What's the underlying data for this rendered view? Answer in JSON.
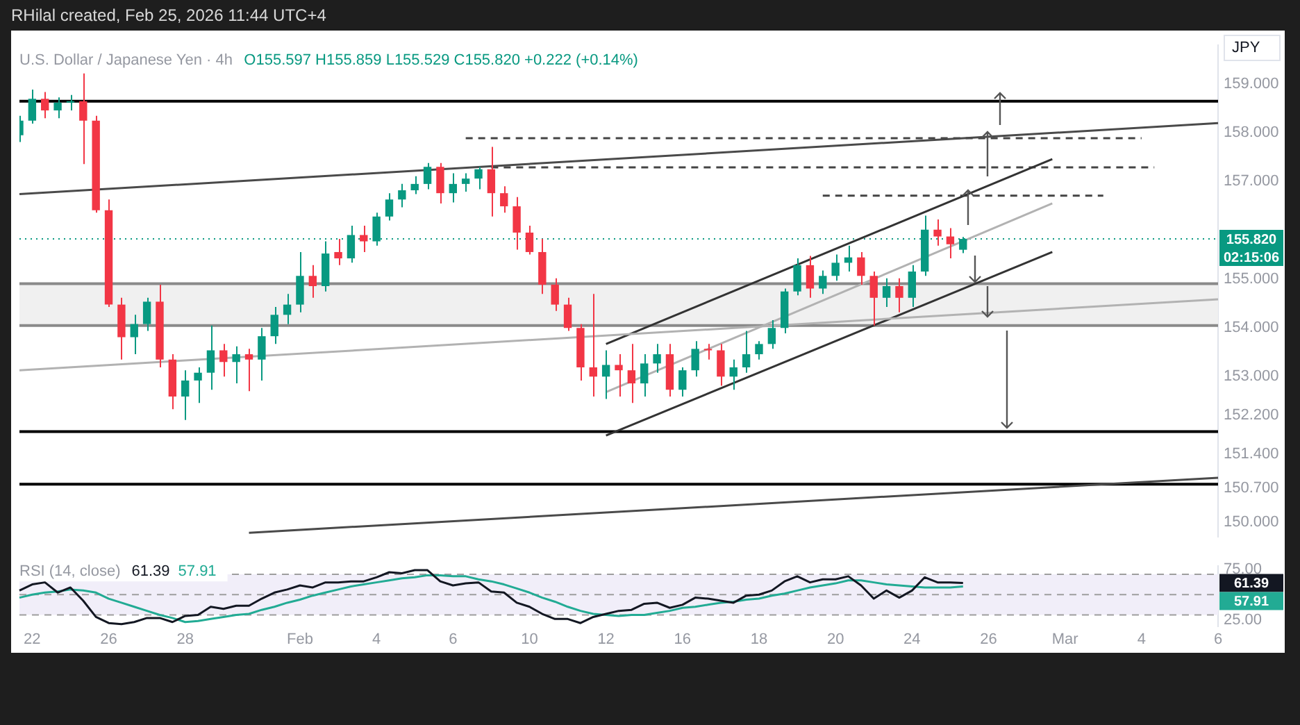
{
  "chart_data": [
    {
      "type": "candlestick",
      "title": "U.S. Dollar / Japanese Yen · 4h",
      "subtitle": "O155.597 H155.859 L155.529 C155.820 +0.222 (+0.14%)",
      "ylabel": "JPY",
      "categories": [
        null,
        null,
        null,
        null,
        null,
        null,
        null,
        null,
        null,
        null,
        null,
        null,
        null,
        null,
        null,
        null,
        null,
        null,
        null,
        null,
        null,
        null,
        null,
        null,
        null,
        null,
        null,
        null,
        null,
        null,
        null,
        null,
        null,
        null,
        null,
        null,
        null,
        null,
        null,
        null,
        null,
        null,
        null,
        null,
        null,
        null,
        null,
        null,
        null,
        null,
        null,
        null,
        null,
        null,
        null,
        null,
        null,
        null,
        null,
        null,
        null,
        null,
        null,
        null,
        null,
        null,
        null,
        null,
        null,
        null,
        null,
        null,
        null,
        null,
        null,
        null,
        null,
        null,
        null,
        null,
        null,
        null,
        null,
        null,
        null,
        null,
        null,
        null,
        null,
        null,
        null,
        null,
        null,
        null,
        null
      ],
      "ohlc": [
        [
          157.95,
          158.35,
          157.81,
          158.25
        ],
        [
          158.25,
          158.89,
          158.19,
          158.7
        ],
        [
          158.7,
          158.84,
          158.3,
          158.46
        ],
        [
          158.46,
          158.73,
          158.3,
          158.62
        ],
        [
          158.62,
          158.78,
          158.46,
          158.65
        ],
        [
          158.65,
          159.22,
          157.36,
          158.25
        ],
        [
          158.25,
          158.35,
          156.36,
          156.41
        ],
        [
          156.41,
          156.63,
          154.42,
          154.47
        ],
        [
          154.47,
          154.61,
          153.34,
          153.8
        ],
        [
          153.8,
          154.26,
          153.45,
          154.07
        ],
        [
          154.07,
          154.61,
          153.93,
          154.53
        ],
        [
          154.53,
          154.88,
          153.18,
          153.34
        ],
        [
          153.34,
          153.45,
          152.32,
          152.58
        ],
        [
          152.58,
          153.12,
          152.1,
          152.91
        ],
        [
          152.91,
          153.18,
          152.45,
          153.07
        ],
        [
          153.07,
          154.04,
          152.72,
          153.53
        ],
        [
          153.53,
          153.66,
          152.99,
          153.29
        ],
        [
          153.29,
          153.61,
          152.85,
          153.45
        ],
        [
          153.45,
          153.56,
          152.69,
          153.34
        ],
        [
          153.34,
          153.99,
          152.91,
          153.82
        ],
        [
          153.82,
          154.42,
          153.66,
          154.26
        ],
        [
          154.26,
          154.69,
          154.07,
          154.47
        ],
        [
          154.47,
          155.55,
          154.31,
          155.06
        ],
        [
          155.06,
          155.28,
          154.61,
          154.85
        ],
        [
          154.85,
          155.77,
          154.74,
          155.52
        ],
        [
          155.55,
          155.82,
          155.28,
          155.42
        ],
        [
          155.42,
          156.09,
          155.33,
          155.9
        ],
        [
          155.9,
          156.09,
          155.55,
          155.77
        ],
        [
          155.77,
          156.36,
          155.68,
          156.28
        ],
        [
          156.28,
          156.76,
          156.2,
          156.63
        ],
        [
          156.63,
          156.95,
          156.47,
          156.82
        ],
        [
          156.82,
          157.11,
          156.74,
          156.95
        ],
        [
          156.95,
          157.38,
          156.84,
          157.3
        ],
        [
          157.3,
          157.38,
          156.55,
          156.76
        ],
        [
          156.76,
          157.17,
          156.57,
          156.95
        ],
        [
          156.95,
          157.17,
          156.79,
          157.06
        ],
        [
          157.06,
          157.3,
          156.84,
          157.25
        ],
        [
          157.25,
          157.71,
          156.28,
          156.76
        ],
        [
          156.76,
          156.9,
          156.36,
          156.49
        ],
        [
          156.49,
          156.68,
          155.6,
          155.95
        ],
        [
          155.95,
          156.09,
          155.5,
          155.55
        ],
        [
          155.55,
          155.82,
          154.69,
          154.88
        ],
        [
          154.88,
          155.01,
          154.34,
          154.47
        ],
        [
          154.47,
          154.61,
          153.93,
          153.99
        ],
        [
          153.99,
          154.07,
          152.91,
          153.18
        ],
        [
          153.18,
          154.69,
          152.58,
          152.99
        ],
        [
          152.99,
          153.53,
          152.53,
          153.23
        ],
        [
          153.23,
          153.45,
          152.58,
          153.12
        ],
        [
          153.12,
          153.66,
          152.45,
          152.85
        ],
        [
          152.85,
          153.45,
          152.58,
          153.26
        ],
        [
          153.26,
          153.66,
          153.07,
          153.45
        ],
        [
          153.45,
          153.66,
          152.58,
          152.72
        ],
        [
          152.72,
          153.18,
          152.58,
          153.12
        ],
        [
          153.12,
          153.72,
          152.99,
          153.56
        ],
        [
          153.56,
          153.66,
          153.34,
          153.53
        ],
        [
          153.53,
          153.66,
          152.8,
          152.99
        ],
        [
          152.99,
          153.34,
          152.72,
          153.18
        ],
        [
          153.18,
          153.93,
          153.07,
          153.45
        ],
        [
          153.45,
          153.72,
          153.34,
          153.66
        ],
        [
          153.66,
          154.15,
          153.56,
          153.99
        ],
        [
          153.99,
          154.8,
          153.88,
          154.74
        ],
        [
          154.74,
          155.42,
          154.66,
          155.28
        ],
        [
          155.28,
          155.47,
          154.61,
          154.8
        ],
        [
          154.8,
          155.17,
          154.69,
          155.06
        ],
        [
          155.06,
          155.5,
          154.96,
          155.33
        ],
        [
          155.33,
          155.68,
          155.15,
          155.44
        ],
        [
          155.44,
          155.55,
          154.88,
          155.06
        ],
        [
          155.06,
          155.15,
          154.04,
          154.61
        ],
        [
          154.61,
          155.01,
          154.42,
          154.85
        ],
        [
          154.85,
          155.01,
          154.31,
          154.61
        ],
        [
          154.61,
          155.28,
          154.42,
          155.15
        ],
        [
          155.15,
          156.3,
          155.06,
          156.01
        ],
        [
          156.01,
          156.22,
          155.68,
          155.87
        ],
        [
          155.87,
          156.04,
          155.42,
          155.71
        ],
        [
          155.597,
          155.859,
          155.529,
          155.82
        ],
        null,
        null,
        null,
        null,
        null,
        null,
        null,
        null,
        null,
        null,
        null,
        null,
        null,
        null,
        null,
        null,
        null,
        null,
        null,
        null
      ],
      "colors": [
        "#089981",
        "#089981",
        "#f23645",
        "#089981",
        "#089981",
        "#f23645",
        "#f23645",
        "#f23645",
        "#f23645",
        "#089981",
        "#089981",
        "#f23645",
        "#f23645",
        "#089981",
        "#089981",
        "#089981",
        "#f23645",
        "#089981",
        "#f23645",
        "#089981",
        "#089981",
        "#089981",
        "#089981",
        "#f23645",
        "#089981",
        "#f23645",
        "#089981",
        "#f23645",
        "#089981",
        "#089981",
        "#089981",
        "#089981",
        "#089981",
        "#f23645",
        "#089981",
        "#089981",
        "#089981",
        "#f23645",
        "#f23645",
        "#f23645",
        "#f23645",
        "#f23645",
        "#f23645",
        "#f23645",
        "#f23645",
        "#f23645",
        "#089981",
        "#f23645",
        "#f23645",
        "#089981",
        "#089981",
        "#f23645",
        "#089981",
        "#089981",
        "#f23645",
        "#f23645",
        "#089981",
        "#089981",
        "#089981",
        "#089981",
        "#089981",
        "#089981",
        "#f23645",
        "#089981",
        "#089981",
        "#089981",
        "#f23645",
        "#f23645",
        "#089981",
        "#f23645",
        "#089981",
        "#089981",
        "#f23645",
        "#f23645",
        "#089981",
        null,
        null,
        null,
        null,
        null,
        null,
        null,
        null,
        null,
        null,
        null,
        null,
        null,
        null,
        null,
        null,
        null,
        null,
        null,
        null
      ],
      "series": [
        {
          "type": "line",
          "color": "#4a4a4a",
          "values": [
            156.74,
            null,
            null,
            null,
            null,
            null,
            null,
            null,
            null,
            null,
            null,
            null,
            null,
            null,
            null,
            null,
            null,
            null,
            null,
            null,
            null,
            null,
            null,
            null,
            null,
            null,
            null,
            null,
            null,
            null,
            null,
            null,
            null,
            null,
            null,
            null,
            null,
            null,
            null,
            null,
            null,
            null,
            null,
            null,
            null,
            null,
            null,
            null,
            null,
            null,
            null,
            null,
            null,
            null,
            null,
            null,
            null,
            null,
            null,
            null,
            null,
            null,
            null,
            null,
            null,
            null,
            null,
            null,
            null,
            null,
            null,
            null,
            null,
            null,
            null,
            null,
            null,
            null,
            null,
            null,
            null,
            null,
            null,
            null,
            null,
            null,
            null,
            null,
            null,
            null,
            null,
            null,
            null,
            null,
            158.2
          ]
        },
        {
          "type": "line",
          "color": "#b2b2b2",
          "values": [
            153.12,
            null,
            null,
            null,
            null,
            null,
            null,
            null,
            null,
            null,
            null,
            null,
            null,
            null,
            null,
            null,
            null,
            null,
            null,
            null,
            null,
            null,
            null,
            null,
            null,
            null,
            null,
            null,
            null,
            null,
            null,
            null,
            null,
            null,
            null,
            null,
            null,
            null,
            null,
            null,
            null,
            null,
            null,
            null,
            null,
            null,
            null,
            null,
            null,
            null,
            null,
            null,
            null,
            null,
            null,
            null,
            null,
            null,
            null,
            null,
            null,
            null,
            null,
            null,
            null,
            null,
            null,
            null,
            null,
            null,
            null,
            null,
            null,
            null,
            null,
            null,
            null,
            null,
            null,
            null,
            null,
            null,
            null,
            null,
            null,
            null,
            null,
            null,
            null,
            null,
            null,
            null,
            null,
            null,
            154.58
          ]
        },
        {
          "type": "line",
          "color": "#4a4a4a",
          "values": [
            null,
            null,
            null,
            null,
            null,
            null,
            null,
            null,
            null,
            null,
            null,
            null,
            null,
            null,
            null,
            null,
            null,
            null,
            149.78,
            null,
            null,
            null,
            null,
            null,
            null,
            null,
            null,
            null,
            null,
            null,
            null,
            null,
            null,
            null,
            null,
            null,
            null,
            null,
            null,
            null,
            null,
            null,
            null,
            null,
            null,
            null,
            null,
            null,
            null,
            null,
            null,
            null,
            null,
            null,
            null,
            null,
            null,
            null,
            null,
            null,
            null,
            null,
            null,
            null,
            null,
            null,
            null,
            null,
            null,
            null,
            null,
            null,
            null,
            null,
            null,
            null,
            null,
            null,
            null,
            null,
            null,
            null,
            null,
            null,
            null,
            null,
            null,
            null,
            null,
            null,
            null,
            null,
            null,
            null,
            150.91
          ]
        },
        {
          "type": "line",
          "color": "#333333",
          "values": [
            null,
            null,
            null,
            null,
            null,
            null,
            null,
            null,
            null,
            null,
            null,
            null,
            null,
            null,
            null,
            null,
            null,
            null,
            null,
            null,
            null,
            null,
            null,
            null,
            null,
            null,
            null,
            null,
            null,
            null,
            null,
            null,
            null,
            null,
            null,
            null,
            null,
            null,
            null,
            null,
            null,
            null,
            null,
            null,
            null,
            null,
            153.66,
            null,
            null,
            null,
            null,
            null,
            null,
            null,
            null,
            null,
            null,
            null,
            null,
            null,
            null,
            null,
            null,
            null,
            null,
            null,
            null,
            null,
            null,
            null,
            null,
            null,
            null,
            null,
            null,
            null,
            null,
            null,
            null,
            null,
            null,
            157.46,
            null,
            null,
            null,
            null,
            null,
            null,
            null,
            null,
            null,
            null,
            null,
            null,
            null
          ]
        },
        {
          "type": "line",
          "color": "#333333",
          "values": [
            null,
            null,
            null,
            null,
            null,
            null,
            null,
            null,
            null,
            null,
            null,
            null,
            null,
            null,
            null,
            null,
            null,
            null,
            null,
            null,
            null,
            null,
            null,
            null,
            null,
            null,
            null,
            null,
            null,
            null,
            null,
            null,
            null,
            null,
            null,
            null,
            null,
            null,
            null,
            null,
            null,
            null,
            null,
            null,
            null,
            null,
            151.78,
            null,
            null,
            null,
            null,
            null,
            null,
            null,
            null,
            null,
            null,
            null,
            null,
            null,
            null,
            null,
            null,
            null,
            null,
            null,
            null,
            null,
            null,
            null,
            null,
            null,
            null,
            null,
            null,
            null,
            null,
            null,
            null,
            null,
            null,
            155.55,
            null,
            null,
            null,
            null,
            null,
            null,
            null,
            null,
            null,
            null,
            null,
            null,
            null
          ]
        },
        {
          "type": "line",
          "color": "#b2b2b2",
          "values": [
            null,
            null,
            null,
            null,
            null,
            null,
            null,
            null,
            null,
            null,
            null,
            null,
            null,
            null,
            null,
            null,
            null,
            null,
            null,
            null,
            null,
            null,
            null,
            null,
            null,
            null,
            null,
            null,
            null,
            null,
            null,
            null,
            null,
            null,
            null,
            null,
            null,
            null,
            null,
            null,
            null,
            null,
            null,
            null,
            null,
            null,
            152.67,
            null,
            null,
            null,
            null,
            null,
            null,
            null,
            null,
            null,
            null,
            null,
            null,
            null,
            null,
            null,
            null,
            null,
            null,
            null,
            null,
            null,
            null,
            null,
            null,
            null,
            null,
            null,
            null,
            null,
            null,
            null,
            null,
            null,
            null,
            156.55,
            null,
            null,
            null,
            null,
            null,
            null,
            null,
            null,
            null,
            null,
            null,
            null,
            null
          ]
        },
        {
          "type": "line",
          "color": "#444444",
          "line_style": "dashed",
          "values": [
            null,
            null,
            null,
            null,
            null,
            null,
            null,
            null,
            null,
            null,
            null,
            null,
            null,
            null,
            null,
            null,
            null,
            null,
            null,
            null,
            null,
            null,
            null,
            null,
            null,
            null,
            null,
            null,
            null,
            null,
            null,
            null,
            null,
            null,
            null,
            157.89,
            null,
            null,
            null,
            null,
            null,
            null,
            null,
            null,
            null,
            null,
            null,
            null,
            null,
            null,
            null,
            null,
            null,
            null,
            null,
            null,
            null,
            null,
            null,
            null,
            null,
            null,
            null,
            null,
            null,
            null,
            null,
            null,
            null,
            null,
            null,
            null,
            null,
            null,
            null,
            null,
            null,
            null,
            null,
            null,
            null,
            null,
            null,
            null,
            null,
            null,
            null,
            null,
            157.89,
            null,
            null,
            null,
            null,
            null,
            null
          ]
        },
        {
          "type": "line",
          "color": "#444444",
          "line_style": "dashed",
          "values": [
            null,
            null,
            null,
            null,
            null,
            null,
            null,
            null,
            null,
            null,
            null,
            null,
            null,
            null,
            null,
            null,
            null,
            null,
            null,
            null,
            null,
            null,
            null,
            null,
            null,
            null,
            null,
            null,
            null,
            null,
            null,
            null,
            null,
            null,
            null,
            null,
            null,
            157.29,
            null,
            null,
            null,
            null,
            null,
            null,
            null,
            null,
            null,
            null,
            null,
            null,
            null,
            null,
            null,
            null,
            null,
            null,
            null,
            null,
            null,
            null,
            null,
            null,
            null,
            null,
            null,
            null,
            null,
            null,
            null,
            null,
            null,
            null,
            null,
            null,
            null,
            null,
            null,
            null,
            null,
            null,
            null,
            null,
            null,
            null,
            null,
            null,
            null,
            null,
            null,
            157.29,
            null,
            null,
            null,
            null,
            null
          ]
        },
        {
          "type": "line",
          "color": "#444444",
          "line_style": "dashed",
          "values": [
            null,
            null,
            null,
            null,
            null,
            null,
            null,
            null,
            null,
            null,
            null,
            null,
            null,
            null,
            null,
            null,
            null,
            null,
            null,
            null,
            null,
            null,
            null,
            null,
            null,
            null,
            null,
            null,
            null,
            null,
            null,
            null,
            null,
            null,
            null,
            null,
            null,
            null,
            null,
            null,
            null,
            null,
            null,
            null,
            null,
            null,
            null,
            null,
            null,
            null,
            null,
            null,
            null,
            null,
            null,
            null,
            null,
            null,
            null,
            null,
            null,
            null,
            null,
            156.71,
            null,
            null,
            null,
            null,
            null,
            null,
            null,
            null,
            null,
            null,
            null,
            null,
            null,
            null,
            null,
            null,
            null,
            null,
            null,
            null,
            null,
            156.71,
            null,
            null,
            null,
            null,
            null,
            null,
            null,
            null,
            null
          ]
        }
      ],
      "ylim": [
        149.7,
        159.8
      ],
      "yticks": [
        {
          "value": 159,
          "label": "159.000"
        },
        {
          "value": 158,
          "label": "158.000"
        },
        {
          "value": 157,
          "label": "157.000"
        },
        {
          "value": 155,
          "label": "155.000"
        },
        {
          "value": 154,
          "label": "154.000"
        },
        {
          "value": 153,
          "label": "153.000"
        },
        {
          "value": 152.2,
          "label": "152.200"
        },
        {
          "value": 151.4,
          "label": "151.400"
        },
        {
          "value": 150.7,
          "label": "150.700"
        },
        {
          "value": 150,
          "label": "150.000"
        }
      ],
      "ref_lines": [
        {
          "axis": "y",
          "value": 158.65,
          "color": "#000000"
        },
        {
          "axis": "y",
          "value": 151.86,
          "color": "#000000"
        },
        {
          "axis": "y",
          "value": 150.78,
          "color": "#000000"
        },
        {
          "axis": "y",
          "value": 154.9,
          "color": "#8a8a8a"
        },
        {
          "axis": "y",
          "value": 154.04,
          "color": "#8a8a8a"
        },
        {
          "axis": "y",
          "value": 155.82,
          "label": "155.820",
          "color": "#089981",
          "line_style": "dotted"
        }
      ],
      "bands": [
        {
          "axis": "y",
          "from": 154.04,
          "to": 154.9,
          "color": "#f0f0f0"
        }
      ],
      "annotations": [
        "RHilal created, Feb 25, 2026 11:44 UTC+4",
        "02:15:06"
      ],
      "tick_labels": "y"
    },
    {
      "type": "line",
      "title": "RSI (14, close)",
      "categories": [
        null,
        "22",
        null,
        null,
        null,
        null,
        null,
        "26",
        null,
        null,
        null,
        null,
        null,
        "28",
        null,
        null,
        null,
        null,
        null,
        null,
        null,
        null,
        "Feb",
        null,
        null,
        null,
        null,
        null,
        "4",
        null,
        null,
        null,
        null,
        null,
        "6",
        null,
        null,
        null,
        null,
        null,
        "10",
        null,
        null,
        null,
        null,
        null,
        "12",
        null,
        null,
        null,
        null,
        null,
        "16",
        null,
        null,
        null,
        null,
        null,
        "18",
        null,
        null,
        null,
        null,
        null,
        "20",
        null,
        null,
        null,
        null,
        null,
        "24",
        null,
        null,
        null,
        null,
        null,
        "26",
        null,
        null,
        null,
        null,
        null,
        "Mar",
        null,
        null,
        null,
        null,
        null,
        "4",
        null,
        null,
        null,
        null,
        null,
        "6"
      ],
      "series": [
        {
          "color": "#131722",
          "values": [
            54,
            60,
            62,
            52,
            57,
            44,
            28,
            22,
            21,
            23,
            27,
            27,
            23,
            29,
            30,
            38,
            36,
            39,
            39,
            46,
            52,
            55,
            59,
            57,
            62,
            62,
            63,
            63,
            67,
            72,
            71,
            74,
            74,
            63,
            59,
            61,
            62,
            53,
            52,
            42,
            38,
            31,
            26,
            26,
            22,
            28,
            31,
            34,
            35,
            41,
            42,
            37,
            40,
            47,
            46,
            44,
            42,
            49,
            50,
            54,
            63,
            68,
            62,
            65,
            65,
            68,
            59,
            46,
            54,
            47,
            54,
            67,
            62,
            62,
            61.39,
            null,
            null,
            null,
            null,
            null,
            null,
            null,
            null,
            null,
            null,
            null,
            null,
            null,
            null,
            null,
            null,
            null,
            null,
            null,
            null
          ]
        },
        {
          "color": "#22ab94",
          "values": [
            47,
            50,
            52,
            53,
            55,
            54,
            52,
            46,
            42,
            38,
            34,
            30,
            27,
            23,
            24,
            26,
            28,
            30,
            31,
            35,
            38,
            42,
            45,
            49,
            52,
            55,
            58,
            60,
            62,
            64,
            66,
            67,
            69,
            69,
            68,
            68,
            65,
            63,
            60,
            56,
            52,
            47,
            43,
            38,
            34,
            31,
            30,
            29,
            30,
            30,
            32,
            34,
            37,
            38,
            40,
            42,
            43,
            45,
            46,
            49,
            51,
            54,
            57,
            59,
            61,
            64,
            64,
            62,
            60,
            59,
            58,
            57,
            57,
            57,
            57.91,
            null,
            null,
            null,
            null,
            null,
            null,
            null,
            null,
            null,
            null,
            null,
            null,
            null,
            null,
            null,
            null,
            null,
            null,
            null,
            null
          ]
        }
      ],
      "ylim": [
        19,
        78
      ],
      "yticks": [
        {
          "value": 75,
          "label": "75.00"
        },
        {
          "value": 25,
          "label": "25.00"
        }
      ],
      "ref_lines": [
        {
          "axis": "y",
          "value": 70,
          "color": "#9e9e9e",
          "line_style": "dashed"
        },
        {
          "axis": "y",
          "value": 50,
          "color": "#9e9e9e",
          "line_style": "dashed"
        },
        {
          "axis": "y",
          "value": 30,
          "color": "#9e9e9e",
          "line_style": "dashed"
        }
      ],
      "bands": [
        {
          "axis": "y",
          "from": 30,
          "to": 70,
          "color": "#f1eef9"
        }
      ],
      "annotations": [
        "61.39",
        "57.91"
      ]
    }
  ]
}
